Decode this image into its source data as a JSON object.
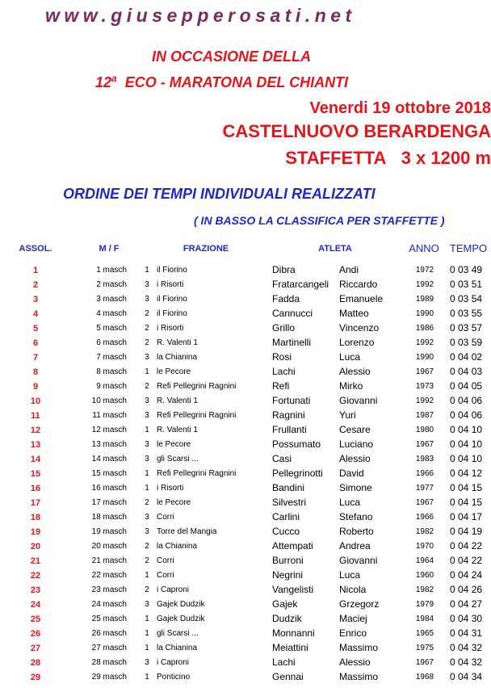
{
  "header": {
    "site": "www.giusepperosati.net",
    "occasion": "IN OCCASIONE DELLA",
    "edition_number": "12",
    "edition_suffix": "a",
    "event": "ECO - MARATONA DEL CHIANTI",
    "date": "Venerdi 19 ottobre 2018",
    "place": "CASTELNUOVO BERARDENGA",
    "race": "STAFFETTA",
    "distance": "3 x 1200 m",
    "subtitle": "ORDINE DEI TEMPI INDIVIDUALI REALIZZATI",
    "note": "( IN BASSO LA CLASSIFICA PER STAFFETTE )"
  },
  "table": {
    "columns": [
      "ASSOL.",
      "M / F",
      "FRAZIONE",
      "ATLETA",
      "ANNO",
      "TEMPO"
    ],
    "rows": [
      [
        "1",
        "1 masch",
        "1",
        "il Fiorino",
        "Dibra",
        "Andi",
        "1972",
        "0 03 49"
      ],
      [
        "2",
        "2 masch",
        "3",
        "i Risorti",
        "Fratarcangeli",
        "Riccardo",
        "1992",
        "0 03 51"
      ],
      [
        "3",
        "3 masch",
        "3",
        "il Fiorino",
        "Fadda",
        "Emanuele",
        "1989",
        "0 03 54"
      ],
      [
        "4",
        "4 masch",
        "2",
        "il Fiorino",
        "Cannucci",
        "Matteo",
        "1990",
        "0 03 55"
      ],
      [
        "5",
        "5 masch",
        "2",
        "i Risorti",
        "Grillo",
        "Vincenzo",
        "1986",
        "0 03 57"
      ],
      [
        "6",
        "6 masch",
        "2",
        "R. Valenti 1",
        "Martinelli",
        "Lorenzo",
        "1992",
        "0 03 59"
      ],
      [
        "7",
        "7 masch",
        "3",
        "la Chianina",
        "Rosi",
        "Luca",
        "1990",
        "0 04 02"
      ],
      [
        "8",
        "8 masch",
        "1",
        "le Pecore",
        "Lachi",
        "Alessio",
        "1967",
        "0 04 03"
      ],
      [
        "9",
        "9 masch",
        "2",
        "Refi Pellegrini Ragnini",
        "Refi",
        "Mirko",
        "1973",
        "0 04 05"
      ],
      [
        "10",
        "10 masch",
        "3",
        "R. Valenti 1",
        "Fortunati",
        "Giovanni",
        "1992",
        "0 04 06"
      ],
      [
        "11",
        "11 masch",
        "3",
        "Refi Pellegrini Ragnini",
        "Ragnini",
        "Yuri",
        "1987",
        "0 04 06"
      ],
      [
        "12",
        "12 masch",
        "1",
        "R. Valenti 1",
        "Frullanti",
        "Cesare",
        "1980",
        "0 04 10"
      ],
      [
        "13",
        "13 masch",
        "3",
        "le Pecore",
        "Possumato",
        "Luciano",
        "1967",
        "0 04 10"
      ],
      [
        "14",
        "14 masch",
        "3",
        "gli Scarsi ...",
        "Casi",
        "Alessio",
        "1983",
        "0 04 10"
      ],
      [
        "15",
        "15 masch",
        "1",
        "Refi Pellegrini Ragnini",
        "Pellegrinotti",
        "David",
        "1966",
        "0 04 12"
      ],
      [
        "16",
        "16 masch",
        "1",
        "i Risorti",
        "Bandini",
        "Simone",
        "1977",
        "0 04 15"
      ],
      [
        "17",
        "17 masch",
        "2",
        "le Pecore",
        "Silvestri",
        "Luca",
        "1967",
        "0 04 15"
      ],
      [
        "18",
        "18 masch",
        "3",
        "Corri",
        "Carlini",
        "Stefano",
        "1966",
        "0 04 17"
      ],
      [
        "19",
        "19 masch",
        "3",
        "Torre del Mangia",
        "Cucco",
        "Roberto",
        "1982",
        "0 04 19"
      ],
      [
        "20",
        "20 masch",
        "2",
        "la Chianina",
        "Attempati",
        "Andrea",
        "1970",
        "0 04 22"
      ],
      [
        "21",
        "21 masch",
        "2",
        "Corri",
        "Burroni",
        "Giovanni",
        "1964",
        "0 04 22"
      ],
      [
        "22",
        "22 masch",
        "1",
        "Corri",
        "Negrini",
        "Luca",
        "1960",
        "0 04 24"
      ],
      [
        "23",
        "23 masch",
        "2",
        "i Caproni",
        "Vangelisti",
        "Nicola",
        "1982",
        "0 04 26"
      ],
      [
        "24",
        "24 masch",
        "3",
        "Gajek Dudzik",
        "Gajek",
        "Grzegorz",
        "1979",
        "0 04 27"
      ],
      [
        "25",
        "25 masch",
        "1",
        "Gajek Dudzik",
        "Dudzik",
        "Maciej",
        "1984",
        "0 04 30"
      ],
      [
        "26",
        "26 masch",
        "1",
        "gli Scarsi ...",
        "Monnanni",
        "Enrico",
        "1965",
        "0 04 31"
      ],
      [
        "27",
        "27 masch",
        "1",
        "la Chianina",
        "Meiattini",
        "Massimo",
        "1975",
        "0 04 32"
      ],
      [
        "28",
        "28 masch",
        "3",
        "i Caproni",
        "Lachi",
        "Alessio",
        "1967",
        "0 04 32"
      ],
      [
        "29",
        "29 masch",
        "1",
        "Ponticino",
        "Gennai",
        "Massimo",
        "1968",
        "0 04 34"
      ]
    ]
  }
}
